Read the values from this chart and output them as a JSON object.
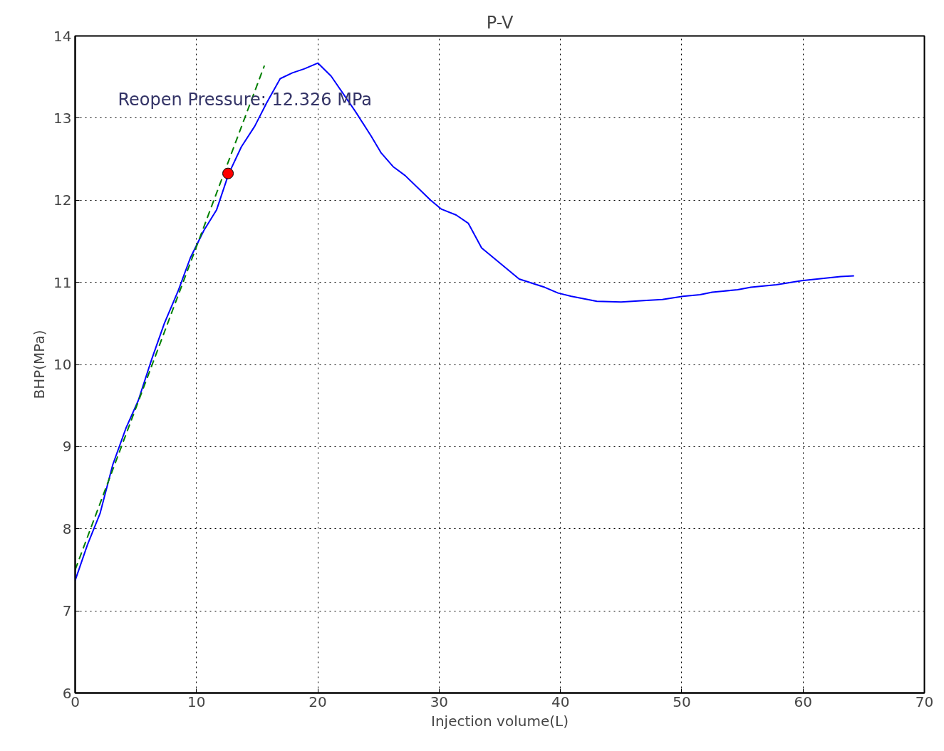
{
  "chart_data": {
    "type": "line",
    "title": "P-V",
    "xlabel": "Injection volume(L)",
    "ylabel": "BHP(MPa)",
    "xlim": [
      0,
      70
    ],
    "ylim": [
      6,
      14
    ],
    "xticks": [
      0,
      10,
      20,
      30,
      40,
      50,
      60,
      70
    ],
    "yticks": [
      6,
      7,
      8,
      9,
      10,
      11,
      12,
      13,
      14
    ],
    "grid": true,
    "annotations": [
      "Reopen Pressure: 12.326 MPa"
    ],
    "series": [
      {
        "color": "#0000ff",
        "line_style": "solid",
        "x": [
          0,
          1.0,
          2.06,
          3.1,
          4.2,
          5.2,
          6.3,
          7.35,
          8.5,
          9.5,
          10.6,
          11.65,
          12.65,
          13.7,
          14.8,
          15.8,
          16.9,
          17.9,
          18.9,
          20.0,
          21.1,
          23.1,
          24.4,
          25.2,
          26.2,
          27.2,
          29.3,
          30.2,
          31.4,
          32.4,
          33.5,
          36.6,
          38.7,
          39.8,
          40.9,
          43.0,
          45.0,
          47.1,
          48.4,
          50.1,
          51.5,
          52.5,
          54.6,
          55.7,
          57.8,
          59.9,
          63.1,
          64.2
        ],
        "values": [
          7.37,
          7.8,
          8.19,
          8.78,
          9.23,
          9.56,
          10.06,
          10.5,
          10.9,
          11.3,
          11.63,
          11.88,
          12.32,
          12.65,
          12.9,
          13.19,
          13.48,
          13.55,
          13.6,
          13.67,
          13.51,
          13.08,
          12.78,
          12.58,
          12.41,
          12.3,
          12.0,
          11.89,
          11.82,
          11.72,
          11.42,
          11.04,
          10.94,
          10.87,
          10.83,
          10.77,
          10.76,
          10.78,
          10.79,
          10.83,
          10.85,
          10.88,
          10.91,
          10.94,
          10.97,
          11.02,
          11.07,
          11.08
        ]
      },
      {
        "color": "#008000",
        "line_style": "dashed",
        "x": [
          0,
          15.6
        ],
        "values": [
          7.5,
          13.64
        ]
      },
      {
        "type": "scatter",
        "color": "#ff0000",
        "marker": "circle",
        "x": [
          12.6
        ],
        "values": [
          12.326
        ]
      }
    ]
  }
}
